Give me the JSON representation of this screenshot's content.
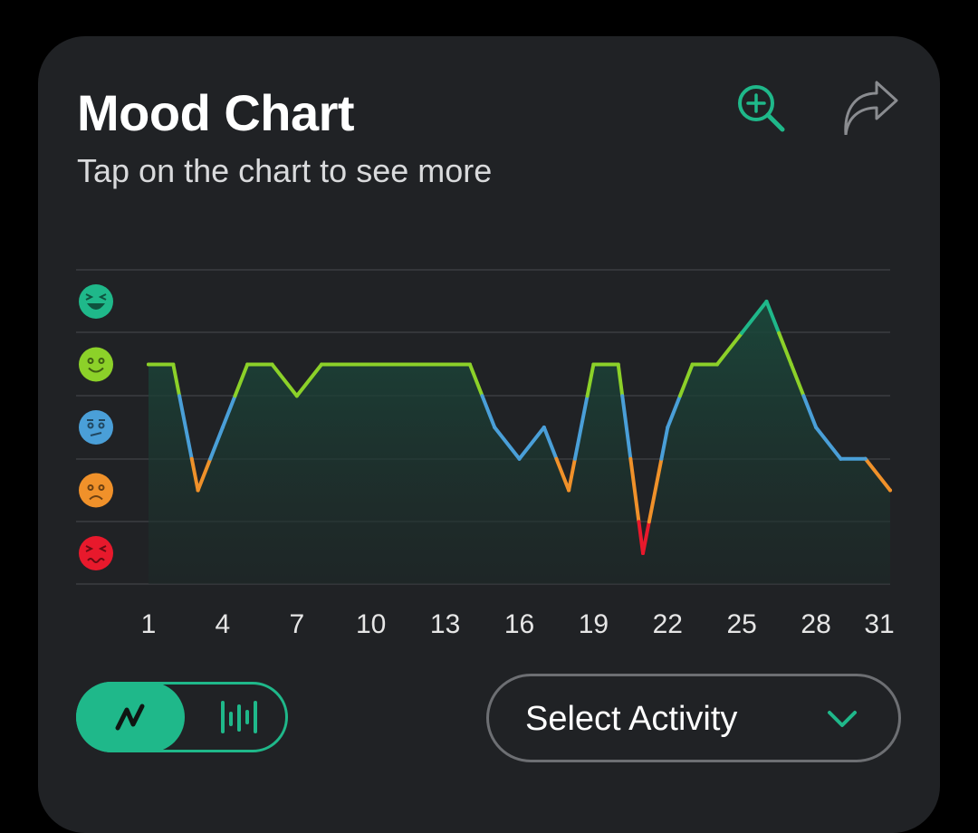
{
  "header": {
    "title": "Mood Chart",
    "subtitle": "Tap on the chart to see more"
  },
  "icons": {
    "zoom": "zoom-in-icon",
    "share": "share-icon",
    "line_view": "line-chart-icon",
    "bar_view": "bar-chart-icon",
    "chevron": "chevron-down-icon"
  },
  "colors": {
    "accent": "#1fb88a",
    "background": "#202225",
    "mood_great": "#1fb88a",
    "mood_good": "#8cd129",
    "mood_meh": "#4a9fd8",
    "mood_bad": "#f0912a",
    "mood_awful": "#e8192c"
  },
  "controls": {
    "view_mode": "line",
    "select_label": "Select Activity"
  },
  "chart_data": {
    "type": "line",
    "title": "",
    "xlabel": "",
    "ylabel": "",
    "x_ticks": [
      "1",
      "4",
      "7",
      "10",
      "13",
      "16",
      "19",
      "22",
      "25",
      "28",
      "31"
    ],
    "y_levels": [
      {
        "level": 5,
        "mood": "great",
        "icon": "great-mood-icon",
        "color": "#1fb88a"
      },
      {
        "level": 4,
        "mood": "good",
        "icon": "good-mood-icon",
        "color": "#8cd129"
      },
      {
        "level": 3,
        "mood": "meh",
        "icon": "meh-mood-icon",
        "color": "#4a9fd8"
      },
      {
        "level": 2,
        "mood": "bad",
        "icon": "bad-mood-icon",
        "color": "#f0912a"
      },
      {
        "level": 1,
        "mood": "awful",
        "icon": "awful-mood-icon",
        "color": "#e8192c"
      }
    ],
    "x": [
      1,
      2,
      3,
      4,
      5,
      6,
      7,
      8,
      9,
      10,
      11,
      12,
      13,
      14,
      15,
      16,
      17,
      18,
      19,
      20,
      21,
      22,
      23,
      24,
      25,
      26,
      27,
      28,
      29,
      30,
      31
    ],
    "series": [
      {
        "values": [
          4,
          4,
          2,
          3,
          4,
          4,
          3.5,
          4,
          4,
          4,
          4,
          4,
          4,
          4,
          3,
          2.5,
          3,
          2,
          4,
          4,
          1,
          3,
          4,
          4,
          4.5,
          5,
          4,
          3,
          2.5,
          2.5,
          2
        ]
      }
    ],
    "ylim": [
      0.5,
      5.5
    ],
    "xlim": [
      1,
      31
    ],
    "grid": true
  }
}
